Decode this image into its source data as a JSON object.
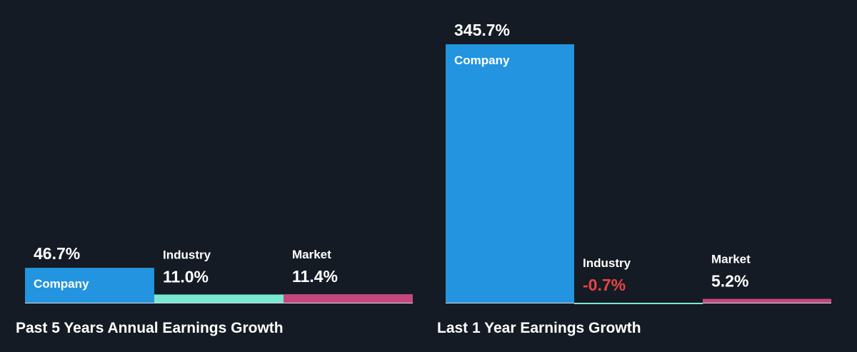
{
  "chart_data": [
    {
      "type": "bar",
      "title": "Past 5 Years Annual Earnings Growth",
      "categories": [
        "Company",
        "Industry",
        "Market"
      ],
      "values": [
        46.7,
        11.0,
        11.4
      ],
      "value_labels": [
        "46.7%",
        "11.0%",
        "11.4%"
      ],
      "unit": "%",
      "colors": [
        "#2394df",
        "#79e8d2",
        "#c3477f"
      ]
    },
    {
      "type": "bar",
      "title": "Last 1 Year Earnings Growth",
      "categories": [
        "Company",
        "Industry",
        "Market"
      ],
      "values": [
        345.7,
        -0.7,
        5.2
      ],
      "value_labels": [
        "345.7%",
        "-0.7%",
        "5.2%"
      ],
      "unit": "%",
      "colors": [
        "#2394df",
        "#79e8d2",
        "#c3477f"
      ]
    }
  ],
  "colors": {
    "background": "#151b24",
    "text": "#ffffff",
    "negative": "#e84545",
    "baseline": "#d8dde4"
  }
}
